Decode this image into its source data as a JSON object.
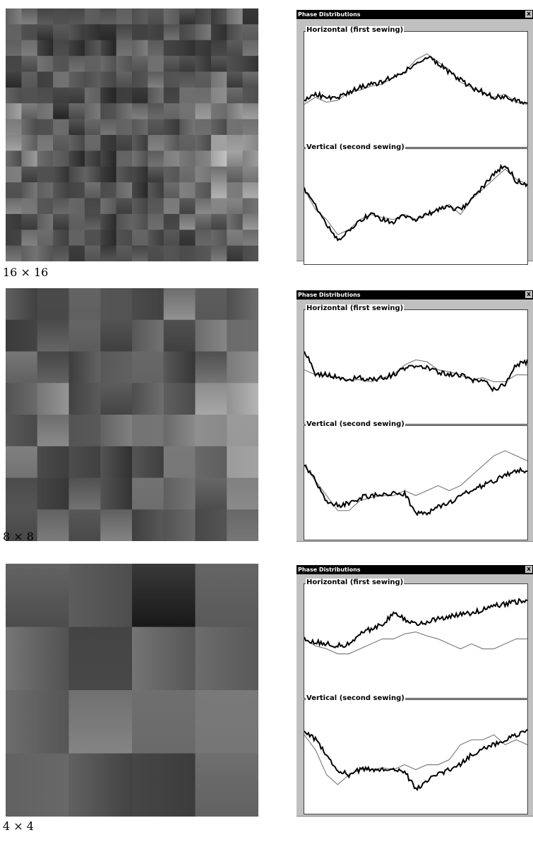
{
  "figures": [
    {
      "caption": "16 × 16",
      "grid": 16,
      "window": {
        "title": "Phase Distributions",
        "close": "x",
        "horizontal_label": "Horizontal (first sewing)",
        "vertical_label": "Vertical (second sewing)"
      }
    },
    {
      "caption": "8 × 8",
      "grid": 8,
      "window": {
        "title": "Phase Distributions",
        "close": "x",
        "horizontal_label": "Horizontal (first sewing)",
        "vertical_label": "Vertical (second sewing)"
      }
    },
    {
      "caption": "4 × 4",
      "grid": 4,
      "window": {
        "title": "Phase Distributions",
        "close": "x",
        "horizontal_label": "Horizontal (first sewing)",
        "vertical_label": "Vertical (second sewing)"
      }
    }
  ],
  "colors": {
    "titlebar": "#000000",
    "window_bg": "#c0c0c0",
    "plot_bg": "#ffffff",
    "measured_line": "#000000",
    "fitted_line": "#808080"
  },
  "chart_data": [
    {
      "type": "line",
      "series": [
        {
          "values": [
            0.62,
            0.55,
            0.6,
            0.58,
            0.5,
            0.48,
            0.44,
            0.42,
            0.35,
            0.3,
            0.18,
            0.12,
            0.2,
            0.28,
            0.4,
            0.45,
            0.5,
            0.55,
            0.52,
            0.6,
            0.62
          ]
        },
        {
          "values": [
            0.58,
            0.52,
            0.55,
            0.55,
            0.5,
            0.45,
            0.42,
            0.4,
            0.34,
            0.3,
            0.2,
            0.15,
            0.22,
            0.3,
            0.38,
            0.45,
            0.5,
            0.55,
            0.55,
            0.58,
            0.62
          ]
        }
      ]
    },
    {
      "type": "line",
      "series": [
        {
          "values": [
            0.3,
            0.5,
            0.6,
            0.75,
            0.7,
            0.6,
            0.55,
            0.58,
            0.6,
            0.55,
            0.6,
            0.55,
            0.5,
            0.45,
            0.55,
            0.4,
            0.3,
            0.2,
            0.1,
            0.2,
            0.25
          ]
        },
        {
          "values": [
            0.3,
            0.45,
            0.65,
            0.8,
            0.72,
            0.6,
            0.55,
            0.6,
            0.62,
            0.55,
            0.6,
            0.55,
            0.5,
            0.48,
            0.5,
            0.4,
            0.28,
            0.15,
            0.05,
            0.22,
            0.25
          ]
        }
      ]
    },
    {
      "type": "line",
      "series": [
        {
          "values": [
            0.5,
            0.55,
            0.55,
            0.58,
            0.6,
            0.6,
            0.62,
            0.58,
            0.55,
            0.45,
            0.4,
            0.42,
            0.5,
            0.52,
            0.55,
            0.6,
            0.58,
            0.62,
            0.62,
            0.55,
            0.55
          ]
        },
        {
          "values": [
            0.3,
            0.55,
            0.55,
            0.57,
            0.6,
            0.58,
            0.6,
            0.58,
            0.55,
            0.48,
            0.45,
            0.48,
            0.52,
            0.55,
            0.55,
            0.6,
            0.6,
            0.7,
            0.65,
            0.45,
            0.42
          ]
        }
      ]
    },
    {
      "type": "line",
      "series": [
        {
          "values": [
            0.3,
            0.45,
            0.6,
            0.75,
            0.75,
            0.65,
            0.62,
            0.6,
            0.6,
            0.55,
            0.6,
            0.55,
            0.5,
            0.55,
            0.5,
            0.4,
            0.3,
            0.2,
            0.15,
            0.2,
            0.25
          ]
        },
        {
          "values": [
            0.3,
            0.45,
            0.65,
            0.7,
            0.68,
            0.62,
            0.6,
            0.58,
            0.58,
            0.58,
            0.78,
            0.78,
            0.72,
            0.68,
            0.6,
            0.55,
            0.5,
            0.45,
            0.4,
            0.35,
            0.35
          ]
        }
      ]
    },
    {
      "type": "line",
      "series": [
        {
          "values": [
            0.45,
            0.52,
            0.55,
            0.6,
            0.6,
            0.55,
            0.5,
            0.45,
            0.45,
            0.4,
            0.38,
            0.42,
            0.45,
            0.5,
            0.55,
            0.5,
            0.55,
            0.55,
            0.5,
            0.45,
            0.45
          ]
        },
        {
          "values": [
            0.45,
            0.48,
            0.5,
            0.52,
            0.5,
            0.4,
            0.35,
            0.3,
            0.2,
            0.25,
            0.3,
            0.28,
            0.25,
            0.22,
            0.2,
            0.2,
            0.15,
            0.12,
            0.1,
            0.08,
            0.05
          ]
        }
      ]
    },
    {
      "type": "line",
      "series": [
        {
          "values": [
            0.25,
            0.4,
            0.65,
            0.75,
            0.65,
            0.6,
            0.6,
            0.58,
            0.6,
            0.55,
            0.6,
            0.55,
            0.55,
            0.5,
            0.35,
            0.3,
            0.3,
            0.25,
            0.35,
            0.3,
            0.35
          ]
        },
        {
          "values": [
            0.2,
            0.3,
            0.45,
            0.6,
            0.65,
            0.6,
            0.6,
            0.6,
            0.6,
            0.62,
            0.8,
            0.7,
            0.65,
            0.6,
            0.55,
            0.45,
            0.4,
            0.35,
            0.3,
            0.25,
            0.2
          ]
        }
      ]
    }
  ]
}
